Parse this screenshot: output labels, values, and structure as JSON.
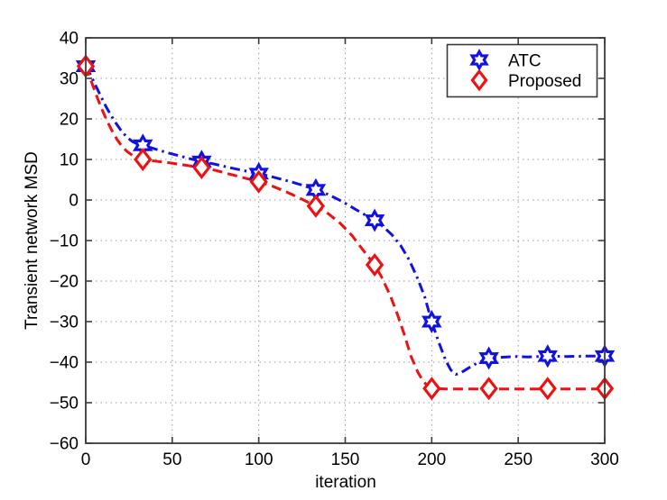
{
  "figure": {
    "background": "#ffffff",
    "axis_color": "#3a3a3a",
    "grid_color": "#9a9a9a",
    "text_color": "#000000"
  },
  "chart_data": {
    "type": "line",
    "title": "",
    "xlabel": "iteration",
    "ylabel": "Transient network MSD",
    "xlim": [
      0,
      300
    ],
    "ylim": [
      -60,
      40
    ],
    "xticks": [
      0,
      50,
      100,
      150,
      200,
      250,
      300
    ],
    "yticks": [
      -60,
      -50,
      -40,
      -30,
      -20,
      -10,
      0,
      10,
      20,
      30,
      40
    ],
    "grid": true,
    "grid_style": "dotted",
    "legend": {
      "position": "top-right",
      "entries": [
        {
          "label": "ATC",
          "marker": "hexagram",
          "color": "#1212e0"
        },
        {
          "label": "Proposed",
          "marker": "diamond",
          "color": "#ee1111"
        }
      ]
    },
    "series": [
      {
        "name": "ATC",
        "color": "#1212e0",
        "line_style": "dash-dot",
        "marker": "hexagram",
        "line": [
          [
            0,
            33
          ],
          [
            3,
            30.7
          ],
          [
            6,
            28
          ],
          [
            9,
            25.3
          ],
          [
            12,
            22.8
          ],
          [
            15,
            20.6
          ],
          [
            18,
            18.6
          ],
          [
            21,
            16.8
          ],
          [
            24,
            15.4
          ],
          [
            27,
            14.4
          ],
          [
            30,
            13.8
          ],
          [
            33,
            13.5
          ],
          [
            40,
            12.6
          ],
          [
            47,
            11.7
          ],
          [
            54,
            10.9
          ],
          [
            60,
            10.2
          ],
          [
            67,
            9.5
          ],
          [
            75,
            8.8
          ],
          [
            83,
            8.0
          ],
          [
            92,
            7.2
          ],
          [
            100,
            6.5
          ],
          [
            108,
            5.7
          ],
          [
            116,
            4.8
          ],
          [
            125,
            3.7
          ],
          [
            133,
            2.5
          ],
          [
            140,
            1.4
          ],
          [
            148,
            -0.3
          ],
          [
            156,
            -2.3
          ],
          [
            162,
            -3.8
          ],
          [
            167,
            -5
          ],
          [
            172,
            -6.6
          ],
          [
            177,
            -8.6
          ],
          [
            182,
            -11.2
          ],
          [
            187,
            -14.8
          ],
          [
            192,
            -19.5
          ],
          [
            196,
            -24
          ],
          [
            200,
            -30
          ],
          [
            204,
            -35
          ],
          [
            208,
            -39.5
          ],
          [
            211,
            -41.9
          ],
          [
            214,
            -43
          ],
          [
            217,
            -42.6
          ],
          [
            221,
            -41.5
          ],
          [
            226,
            -40.3
          ],
          [
            233,
            -39
          ],
          [
            240,
            -38.8
          ],
          [
            248,
            -38.6
          ],
          [
            256,
            -38.7
          ],
          [
            267,
            -38.5
          ],
          [
            278,
            -38.6
          ],
          [
            289,
            -38.5
          ],
          [
            300,
            -38.5
          ]
        ],
        "markers": [
          [
            0,
            33
          ],
          [
            33,
            13.5
          ],
          [
            67,
            9.5
          ],
          [
            100,
            6.5
          ],
          [
            133,
            2.5
          ],
          [
            167,
            -5
          ],
          [
            200,
            -30
          ],
          [
            233,
            -39
          ],
          [
            267,
            -38.5
          ],
          [
            300,
            -38.5
          ]
        ]
      },
      {
        "name": "Proposed",
        "color": "#ee1111",
        "line_style": "dashed",
        "marker": "diamond",
        "line": [
          [
            0,
            33
          ],
          [
            3,
            29.5
          ],
          [
            6,
            26
          ],
          [
            9,
            22.7
          ],
          [
            12,
            19.8
          ],
          [
            15,
            17.2
          ],
          [
            18,
            15
          ],
          [
            21,
            13.2
          ],
          [
            24,
            11.9
          ],
          [
            27,
            11
          ],
          [
            30,
            10.4
          ],
          [
            33,
            10
          ],
          [
            40,
            9.6
          ],
          [
            48,
            9.2
          ],
          [
            56,
            8.7
          ],
          [
            67,
            8
          ],
          [
            75,
            7.3
          ],
          [
            83,
            6.4
          ],
          [
            92,
            5.4
          ],
          [
            100,
            4.5
          ],
          [
            108,
            3.4
          ],
          [
            116,
            2.0
          ],
          [
            125,
            0.2
          ],
          [
            133,
            -1.5
          ],
          [
            140,
            -3.3
          ],
          [
            147,
            -5.7
          ],
          [
            154,
            -8.8
          ],
          [
            160,
            -12.2
          ],
          [
            167,
            -16
          ],
          [
            171,
            -19
          ],
          [
            176,
            -23.5
          ],
          [
            180,
            -28
          ],
          [
            184,
            -33
          ],
          [
            188,
            -38.5
          ],
          [
            192,
            -42.5
          ],
          [
            195,
            -44.7
          ],
          [
            198,
            -46
          ],
          [
            202,
            -46.5
          ],
          [
            208,
            -46.6
          ],
          [
            216,
            -46.6
          ],
          [
            225,
            -46.6
          ],
          [
            233,
            -46.6
          ],
          [
            245,
            -46.6
          ],
          [
            256,
            -46.6
          ],
          [
            267,
            -46.6
          ],
          [
            280,
            -46.6
          ],
          [
            290,
            -46.6
          ],
          [
            300,
            -46.6
          ]
        ],
        "markers": [
          [
            0,
            33
          ],
          [
            33,
            10
          ],
          [
            67,
            8
          ],
          [
            100,
            4.5
          ],
          [
            133,
            -1.5
          ],
          [
            167,
            -16
          ],
          [
            200,
            -46.5
          ],
          [
            233,
            -46.5
          ],
          [
            267,
            -46.5
          ],
          [
            300,
            -46.5
          ]
        ]
      }
    ]
  }
}
